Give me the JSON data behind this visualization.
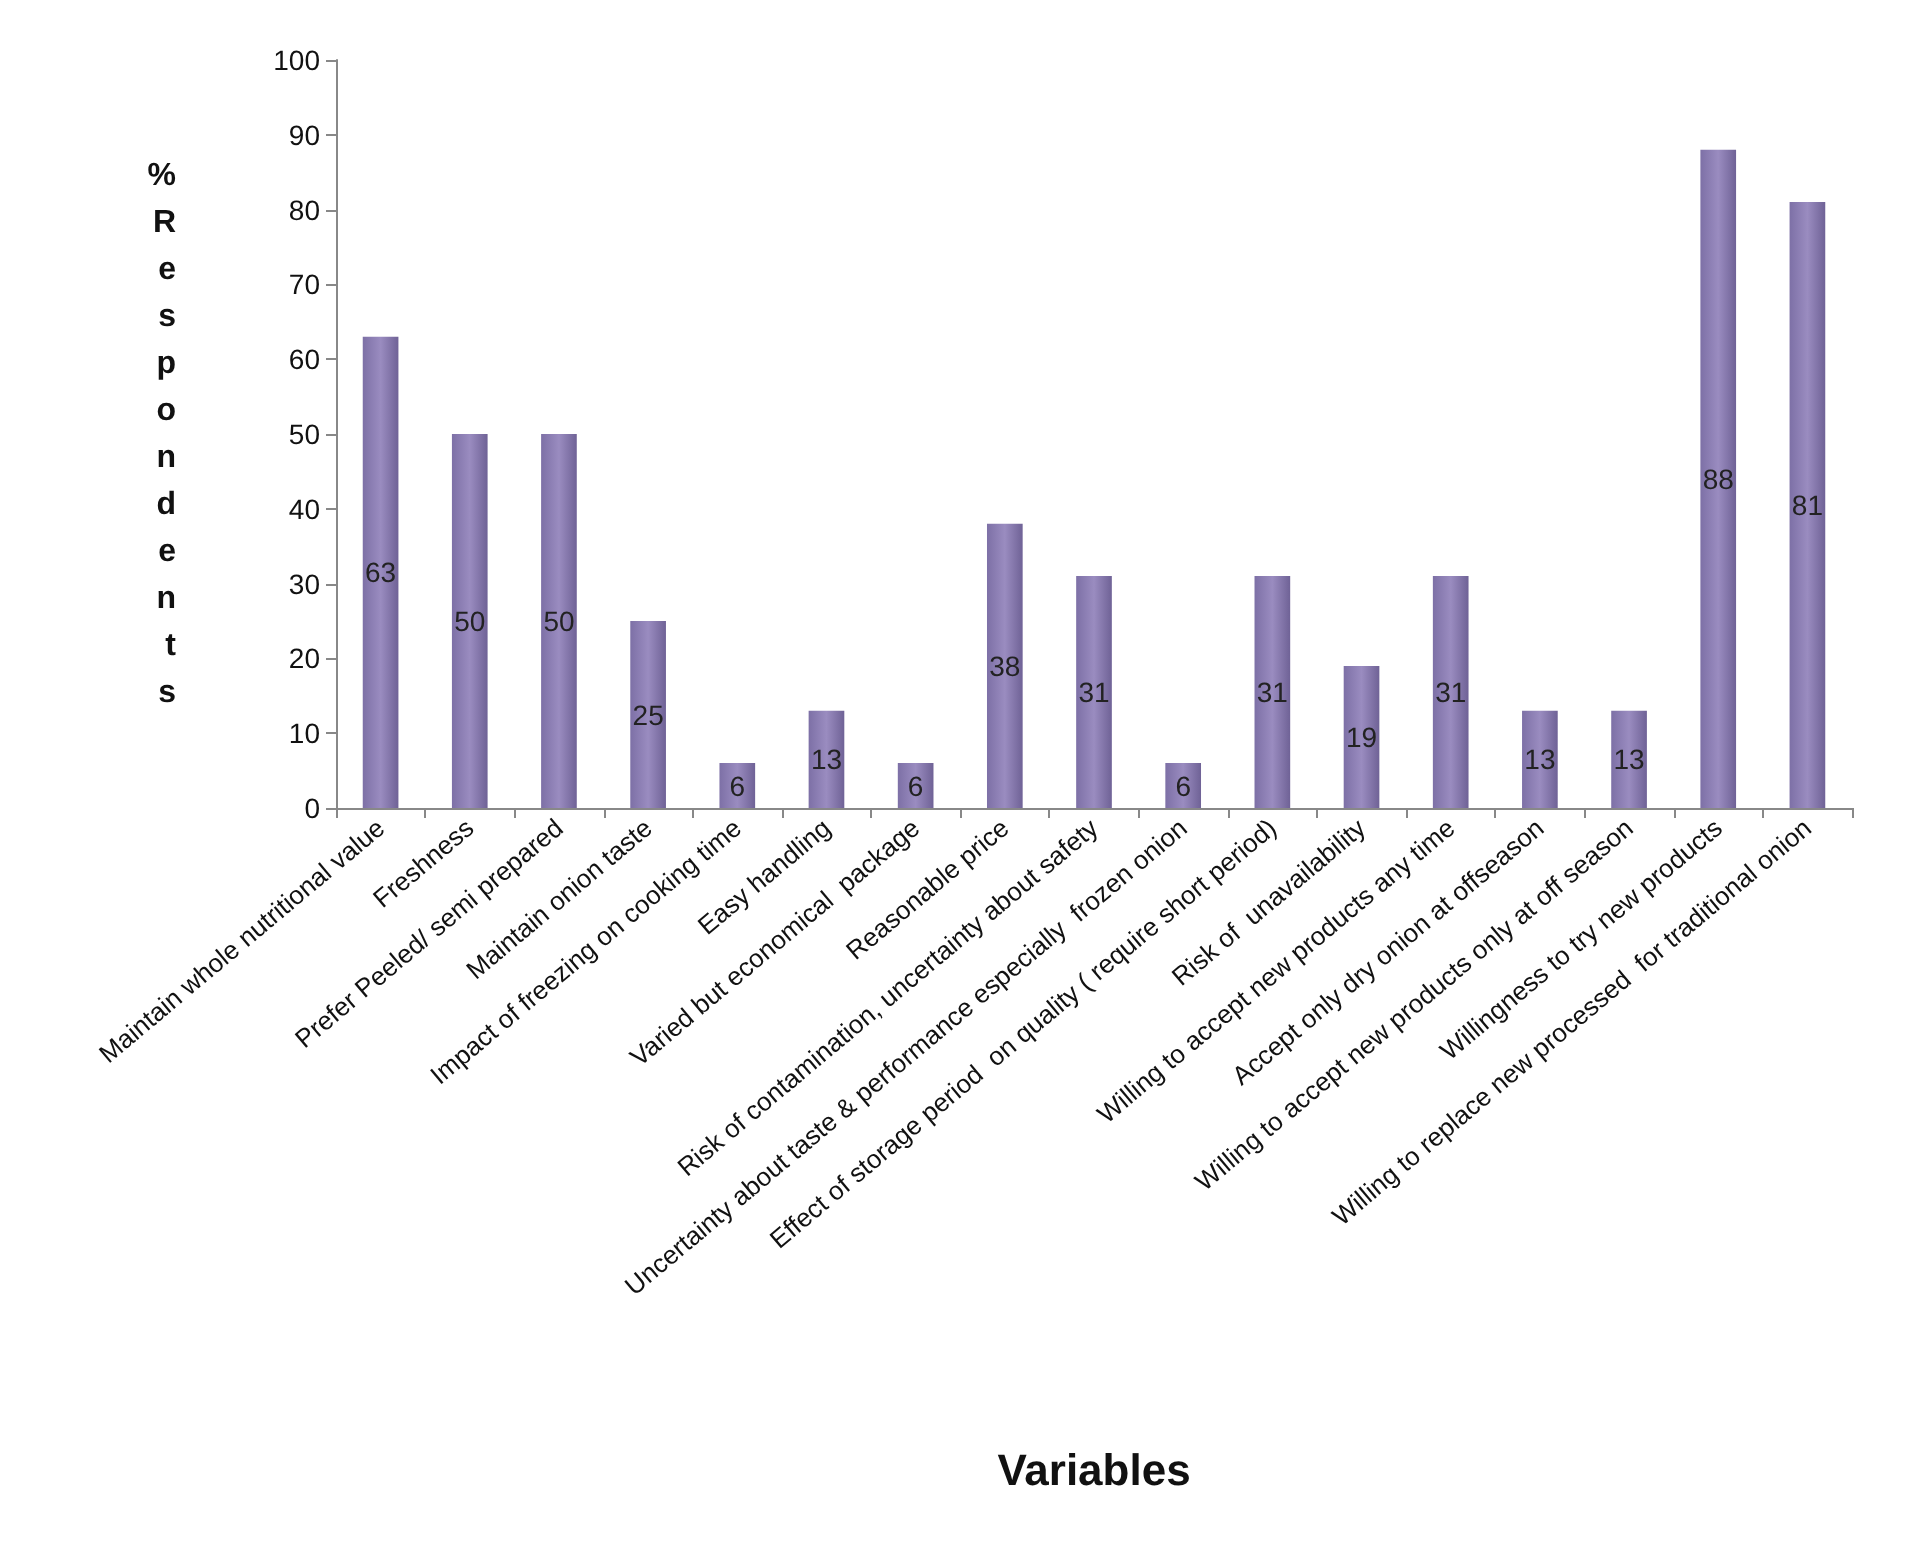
{
  "chart_data": {
    "type": "bar",
    "xlabel": "Variables",
    "ylabel": "% Respondents",
    "categories": [
      "Maintain whole nutritional value",
      "Freshness",
      "Prefer Peeled/ semi prepared",
      "Maintain onion taste",
      "Impact of freezing on cooking time",
      "Easy handling",
      "Varied but economical  package",
      "Reasonable price",
      "Risk of contamination, uncertainty about safety",
      "Uncertainty about taste & performance especially  frozen onion",
      "Effect of storage period  on quality ( require short period)",
      "Risk of  unavailability",
      "Willing to accept new products any time",
      "Accept only dry onion at offseason",
      "Willing to accept new products only at off season",
      "Willingness to try new products",
      "Willing to replace new processed  for traditional onion"
    ],
    "values": [
      63,
      50,
      50,
      25,
      6,
      13,
      6,
      38,
      31,
      6,
      31,
      19,
      31,
      13,
      13,
      88,
      81
    ],
    "color": "#9a8cc0",
    "ylim": [
      0,
      100
    ],
    "yticks": [
      0,
      10,
      20,
      30,
      40,
      50,
      60,
      70,
      80,
      90,
      100
    ],
    "grid": false,
    "data_labels": true
  }
}
